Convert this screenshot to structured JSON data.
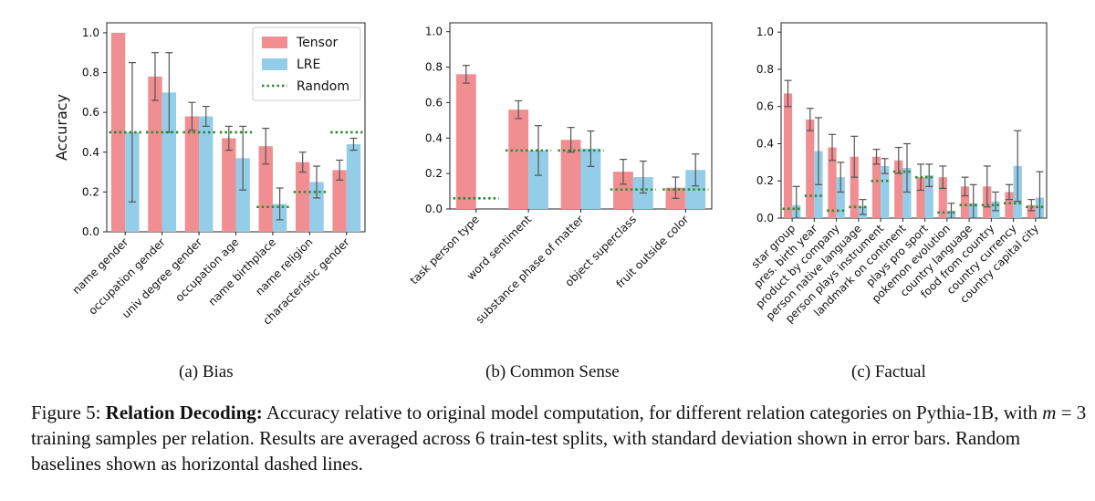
{
  "colors": {
    "tensor": "#f08e92",
    "lre": "#93cde8",
    "random": "#2e8b2e",
    "errorbar": "#555555"
  },
  "legend": {
    "tensor": "Tensor",
    "lre": "LRE",
    "random": "Random"
  },
  "chart_data": [
    {
      "type": "bar",
      "ylabel": "Accuracy",
      "ylim": [
        0,
        1.05
      ],
      "yticks": [
        "0.0",
        "0.2",
        "0.4",
        "0.6",
        "0.8",
        "1.0"
      ],
      "legend_position": "top-right",
      "categories": [
        "name gender",
        "occupation gender",
        "univ degree gender",
        "occupation age",
        "name birthplace",
        "name religion",
        "characteristic gender"
      ],
      "series": [
        {
          "name": "Tensor",
          "values": [
            1.0,
            0.78,
            0.58,
            0.47,
            0.43,
            0.35,
            0.31
          ],
          "errors": [
            0.0,
            0.12,
            0.07,
            0.06,
            0.09,
            0.05,
            0.05
          ]
        },
        {
          "name": "LRE",
          "values": [
            0.5,
            0.7,
            0.58,
            0.37,
            0.14,
            0.25,
            0.44
          ],
          "errors": [
            0.35,
            0.2,
            0.05,
            0.16,
            0.08,
            0.08,
            0.03
          ]
        }
      ],
      "random": [
        0.5,
        0.5,
        0.5,
        0.5,
        0.125,
        0.2,
        0.5
      ],
      "subcaption": "(a) Bias"
    },
    {
      "type": "bar",
      "ylabel": "",
      "ylim": [
        0,
        1.05
      ],
      "yticks": [
        "0.0",
        "0.2",
        "0.4",
        "0.6",
        "0.8",
        "1.0"
      ],
      "categories": [
        "task person type",
        "word sentiment",
        "substance phase of matter",
        "object superclass",
        "fruit outside color"
      ],
      "series": [
        {
          "name": "Tensor",
          "values": [
            0.76,
            0.56,
            0.39,
            0.21,
            0.12
          ],
          "errors": [
            0.05,
            0.05,
            0.07,
            0.07,
            0.06
          ]
        },
        {
          "name": "LRE",
          "values": [
            0.0,
            0.33,
            0.34,
            0.18,
            0.22
          ],
          "errors": [
            0.0,
            0.14,
            0.1,
            0.09,
            0.09
          ]
        }
      ],
      "random": [
        0.06,
        0.33,
        0.33,
        0.11,
        0.11
      ],
      "subcaption": "(b) Common Sense"
    },
    {
      "type": "bar",
      "ylabel": "",
      "ylim": [
        0,
        1.05
      ],
      "yticks": [
        "0.0",
        "0.2",
        "0.4",
        "0.6",
        "0.8",
        "1.0"
      ],
      "categories": [
        "star group",
        "pres. birth year",
        "product by company",
        "person native language",
        "person plays instrument",
        "landmark on continent",
        "plays pro sport",
        "pokemon evolution",
        "country language",
        "food from country",
        "country currency",
        "country capital city"
      ],
      "series": [
        {
          "name": "Tensor",
          "values": [
            0.67,
            0.53,
            0.38,
            0.33,
            0.33,
            0.31,
            0.22,
            0.22,
            0.17,
            0.17,
            0.14,
            0.07
          ],
          "errors": [
            0.07,
            0.06,
            0.07,
            0.11,
            0.04,
            0.07,
            0.07,
            0.06,
            0.05,
            0.11,
            0.04,
            0.03
          ]
        },
        {
          "name": "LRE",
          "values": [
            0.07,
            0.36,
            0.22,
            0.06,
            0.28,
            0.27,
            0.23,
            0.04,
            0.08,
            0.09,
            0.28,
            0.11
          ],
          "errors": [
            0.1,
            0.18,
            0.08,
            0.04,
            0.04,
            0.13,
            0.06,
            0.04,
            0.1,
            0.05,
            0.19,
            0.14
          ]
        }
      ],
      "random": [
        0.05,
        0.12,
        0.04,
        0.06,
        0.2,
        0.25,
        0.22,
        0.03,
        0.07,
        0.07,
        0.08,
        0.06
      ],
      "subcaption": "(c) Factual"
    }
  ],
  "caption": {
    "figure_label": "Figure 5:",
    "bold_title": "Relation Decoding:",
    "text_before_math": "Accuracy relative to original model computation, for different relation categories on Pythia-1B, with",
    "math_var": "m",
    "math_rest": "= 3",
    "text_after_math": "training samples per relation. Results are averaged across 6 train-test splits, with standard deviation shown in error bars. Random baselines shown as horizontal dashed lines."
  }
}
